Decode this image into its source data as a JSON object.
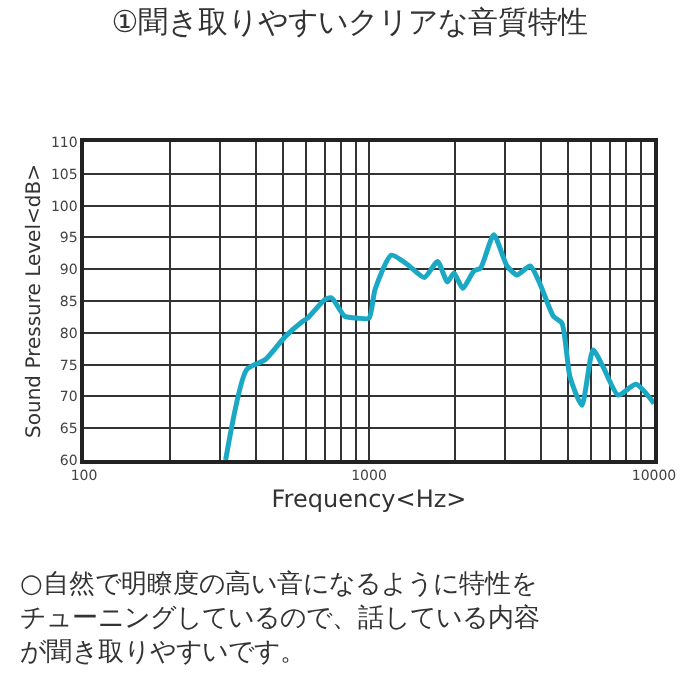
{
  "chart_data": {
    "type": "line",
    "title": "①聞き取りやすいクリアな音質特性",
    "xlabel": "Frequency<Hz>",
    "ylabel": "Sound Pressure Level<dB>",
    "log": "x",
    "grid": true,
    "legend": false,
    "marker": "none",
    "line_style": "solid",
    "xlim": [
      100,
      10000
    ],
    "xticks": [
      100,
      {
        "value": 200,
        "label": null
      },
      {
        "value": 300,
        "label": null
      },
      {
        "value": 400,
        "label": null
      },
      {
        "value": 500,
        "label": null
      },
      {
        "value": 600,
        "label": null
      },
      {
        "value": 700,
        "label": null
      },
      {
        "value": 800,
        "label": null
      },
      {
        "value": 900,
        "label": null
      },
      1000,
      {
        "value": 2000,
        "label": null
      },
      {
        "value": 3000,
        "label": null
      },
      {
        "value": 4000,
        "label": null
      },
      {
        "value": 5000,
        "label": null
      },
      {
        "value": 6000,
        "label": null
      },
      {
        "value": 7000,
        "label": null
      },
      {
        "value": 8000,
        "label": null
      },
      {
        "value": 9000,
        "label": null
      },
      10000
    ],
    "ylim": [
      60,
      110
    ],
    "yticks": [
      60,
      65,
      70,
      75,
      80,
      85,
      90,
      95,
      100,
      105,
      110
    ],
    "x": [
      314,
      372,
      433,
      508,
      581,
      612,
      700,
      739,
      822,
      916,
      1000,
      1050,
      1197,
      1367,
      1563,
      1740,
      1884,
      1987,
      2131,
      2333,
      2464,
      2741,
      3050,
      3304,
      3680,
      3988,
      4437,
      4754,
      5070,
      5585,
      6110,
      6620,
      7490,
      8650,
      10000
    ],
    "series": [
      {
        "color": "#1aa8c4",
        "values": [
          60,
          74.2,
          75.8,
          79.4,
          81.7,
          82.4,
          85.2,
          85.5,
          82.6,
          82.3,
          82.3,
          86.8,
          92.2,
          90.7,
          88.7,
          91.2,
          88.0,
          89.4,
          87.0,
          89.7,
          90.2,
          95.4,
          90.5,
          89.1,
          90.5,
          87.6,
          82.6,
          81.5,
          73.1,
          68.6,
          77.3,
          74.7,
          70.2,
          71.9,
          68.9
        ]
      }
    ],
    "annotations": [
      "○自然で明瞭度の高い音になるように特性をチューニングしているので、話している内容が聞き取りやすいです。"
    ]
  }
}
